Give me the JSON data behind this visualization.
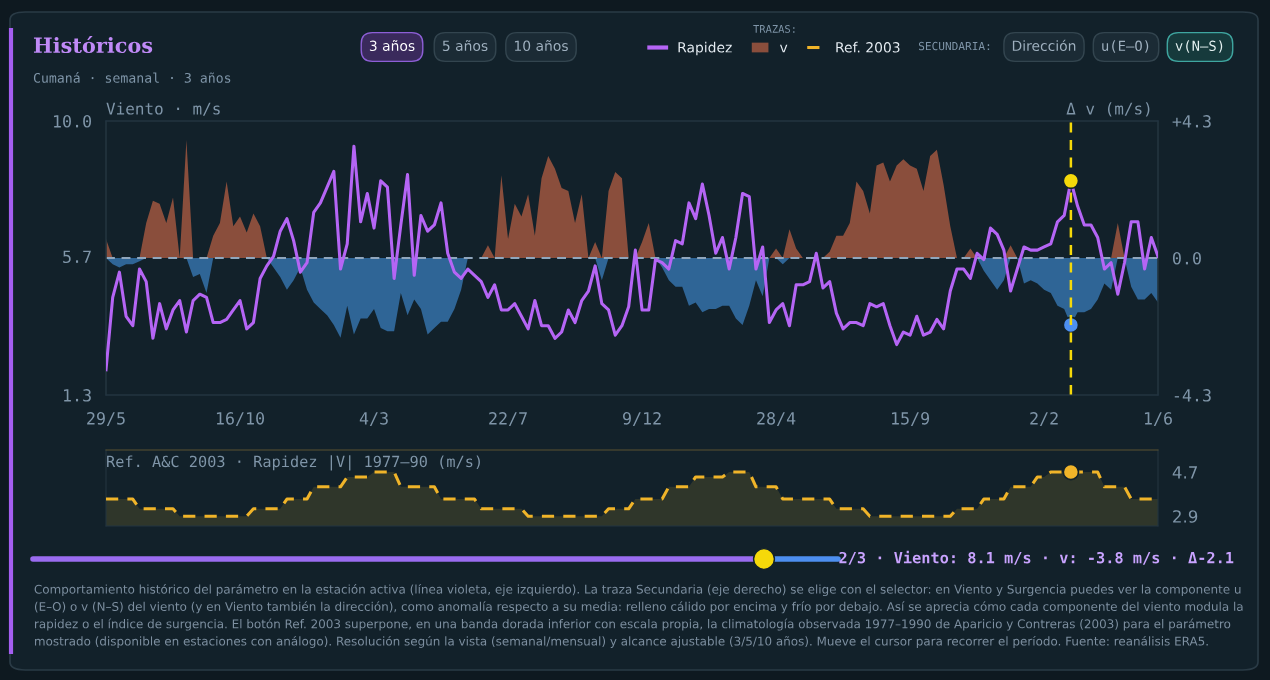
{
  "chart_data": [
    {
      "type": "line",
      "title": "Históricos",
      "subtitle": "Cumaná · semanal · 3 años",
      "ylabel": "Viento · m/s",
      "y2label": "Δ v (m/s)",
      "categories": [
        "29/5",
        null,
        null,
        null,
        null,
        null,
        null,
        null,
        null,
        null,
        null,
        null,
        null,
        null,
        null,
        null,
        null,
        null,
        null,
        null,
        "16/10",
        null,
        null,
        null,
        null,
        null,
        null,
        null,
        null,
        null,
        null,
        null,
        null,
        null,
        null,
        null,
        null,
        null,
        null,
        null,
        "4/3",
        null,
        null,
        null,
        null,
        null,
        null,
        null,
        null,
        null,
        null,
        null,
        null,
        null,
        null,
        null,
        null,
        null,
        null,
        null,
        "22/7",
        null,
        null,
        null,
        null,
        null,
        null,
        null,
        null,
        null,
        null,
        null,
        null,
        null,
        null,
        null,
        null,
        null,
        null,
        null,
        "9/12",
        null,
        null,
        null,
        null,
        null,
        null,
        null,
        null,
        null,
        null,
        null,
        null,
        null,
        null,
        null,
        null,
        null,
        null,
        null,
        "28/4",
        null,
        null,
        null,
        null,
        null,
        null,
        null,
        null,
        null,
        null,
        null,
        null,
        null,
        null,
        null,
        null,
        null,
        null,
        null,
        "15/9",
        null,
        null,
        null,
        null,
        null,
        null,
        null,
        null,
        null,
        null,
        null,
        null,
        null,
        null,
        null,
        null,
        null,
        null,
        null,
        "2/2",
        null,
        null,
        null,
        null,
        null,
        null,
        null,
        null,
        null,
        null,
        null,
        null,
        null,
        null,
        null,
        null,
        "1/6"
      ],
      "ylim": [
        1.3,
        10.0
      ],
      "yticks": [
        1.3,
        5.7,
        {
          "value": 10.0,
          "label": "10.0"
        }
      ],
      "y2lim": [
        -4.3,
        4.3
      ],
      "y2ticks": [
        {
          "value": 4.3,
          "label": "+4.3"
        },
        {
          "value": 0,
          "label": "0.0"
        },
        {
          "value": -4.3,
          "label": "-4.3"
        }
      ],
      "legend": "top",
      "legend_title": "TRAZAS:",
      "ref_lines": [
        {
          "axis": "y2",
          "value": 0,
          "color": "#8fa6bd",
          "line_style": "dashed"
        }
      ],
      "series": [
        {
          "name": "Rapidez",
          "color": "#b565f5",
          "values": [
            2.1,
            4.4,
            5.2,
            3.8,
            3.5,
            5.3,
            4.9,
            3.1,
            4.2,
            3.4,
            4.0,
            4.3,
            3.3,
            4.3,
            4.5,
            4.4,
            3.6,
            3.6,
            3.7,
            4.0,
            4.3,
            3.4,
            3.6,
            5.0,
            5.4,
            5.7,
            6.5,
            6.9,
            6.2,
            5.2,
            5.5,
            7.1,
            7.4,
            7.9,
            8.4,
            5.3,
            6.1,
            9.2,
            6.8,
            7.7,
            6.6,
            8.1,
            7.9,
            5.0,
            6.7,
            8.3,
            5.1,
            7.0,
            6.5,
            6.7,
            7.4,
            5.8,
            5.2,
            5.0,
            5.3,
            5.1,
            4.9,
            4.4,
            4.8,
            4.0,
            4.0,
            4.2,
            3.8,
            3.4,
            4.3,
            3.5,
            3.5,
            3.1,
            3.3,
            4.0,
            3.6,
            4.3,
            4.6,
            5.4,
            4.2,
            4.0,
            3.2,
            3.5,
            4.1,
            5.9,
            4.0,
            4.0,
            5.6,
            5.5,
            5.3,
            6.2,
            6.1,
            7.4,
            6.9,
            8.0,
            7.0,
            5.8,
            6.3,
            5.3,
            6.3,
            7.7,
            7.6,
            5.3,
            6.0,
            3.6,
            4.0,
            4.2,
            3.5,
            4.8,
            4.8,
            4.9,
            5.8,
            4.7,
            4.9,
            3.9,
            3.4,
            3.6,
            3.6,
            3.5,
            4.2,
            4.1,
            4.2,
            3.5,
            2.9,
            3.3,
            3.2,
            3.8,
            3.2,
            3.3,
            3.7,
            3.4,
            4.6,
            5.3,
            5.3,
            5.0,
            5.8,
            5.6,
            6.6,
            6.4,
            5.9,
            4.6,
            5.3,
            6.0,
            5.9,
            5.9,
            6.0,
            6.1,
            6.8,
            7.0,
            8.1,
            7.3,
            6.7,
            6.7,
            6.3,
            5.3,
            5.5,
            4.5,
            5.5,
            6.8,
            6.8,
            5.3,
            6.3,
            5.7
          ]
        },
        {
          "name": "v",
          "type": "area",
          "axis": "y2",
          "color": "#8a4e3c",
          "values": [
            0.6,
            0,
            0,
            0,
            0,
            0,
            1.1,
            1.8,
            1.7,
            1.1,
            1.9,
            0,
            3.7,
            0,
            0,
            0,
            0.7,
            1.1,
            2.4,
            1.0,
            1.3,
            0.8,
            1.4,
            1.0,
            0,
            0,
            0,
            0,
            0,
            0,
            0,
            0,
            0,
            0,
            0,
            0,
            0,
            0,
            0,
            0,
            0,
            0,
            0,
            0,
            0,
            0,
            0,
            0,
            0,
            0,
            0,
            0,
            0,
            0,
            0,
            0,
            0,
            0.4,
            0,
            2.6,
            0.6,
            1.7,
            1.3,
            2.0,
            0.7,
            2.5,
            3.2,
            2.8,
            2.2,
            2.1,
            1.1,
            2.0,
            0,
            0.5,
            0,
            2.1,
            2.7,
            2.5,
            0,
            0,
            0.5,
            1.1,
            0,
            0,
            0,
            0,
            0,
            0,
            0,
            0,
            0,
            0,
            0,
            0,
            0,
            0,
            0,
            0,
            0,
            0,
            0.3,
            0,
            0.9,
            0.3,
            0,
            0,
            0,
            0,
            0.2,
            0.7,
            0.7,
            1.1,
            2.4,
            2.1,
            1.4,
            2.9,
            3.0,
            2.4,
            2.9,
            3.1,
            2.9,
            2.8,
            2.1,
            3.2,
            3.4,
            2.3,
            1.0,
            0,
            0,
            0.3,
            0,
            0,
            0,
            0,
            0,
            0.4,
            0,
            0,
            0,
            0,
            0,
            0,
            0,
            0,
            0,
            0,
            0,
            0,
            0,
            0,
            0,
            1.1,
            0,
            0,
            0,
            0,
            0,
            0
          ]
        },
        {
          "type": "area",
          "axis": "y2",
          "color": "#2f6596",
          "values": [
            0,
            -0.2,
            -0.3,
            -0.2,
            -0.2,
            -0.1,
            0,
            0,
            0,
            0,
            0,
            0,
            0,
            -0.6,
            -0.5,
            -1.1,
            0,
            0,
            0,
            0,
            0,
            0,
            0,
            0,
            0,
            -0.3,
            -0.6,
            -1.0,
            -0.7,
            -0.3,
            -1.0,
            -1.4,
            -1.6,
            -1.8,
            -2.1,
            -2.5,
            -1.5,
            -2.4,
            -1.9,
            -1.9,
            -1.6,
            -2.2,
            -2.3,
            -2.3,
            -1.1,
            -1.8,
            -1.3,
            -1.6,
            -2.4,
            -2.2,
            -2.0,
            -2.0,
            -1.6,
            -1.0,
            0,
            0,
            0,
            0,
            0,
            0,
            0,
            0,
            0,
            0,
            0,
            0,
            0,
            0,
            0,
            0,
            0,
            0,
            0,
            0,
            -0.7,
            0,
            0,
            0,
            0,
            0,
            0,
            0,
            0,
            -0.3,
            -0.7,
            -0.9,
            -0.9,
            -1.5,
            -1.4,
            -1.7,
            -1.6,
            -1.6,
            -1.5,
            -1.5,
            -1.9,
            -2.1,
            -1.5,
            -0.7,
            -1.2,
            0,
            0,
            -0.2,
            0,
            0,
            0,
            0,
            0,
            0,
            0,
            0,
            0,
            0,
            0,
            0,
            0,
            0,
            0,
            0,
            0,
            0,
            0,
            0,
            0,
            0,
            0,
            0,
            0,
            0,
            0,
            0,
            0,
            -0.4,
            -0.7,
            -1.0,
            -0.7,
            0,
            0,
            -0.8,
            -0.7,
            -0.8,
            -1.0,
            -1.1,
            -1.5,
            -1.6,
            -2.1,
            -1.7,
            -1.7,
            -1.6,
            -1.3,
            -0.8,
            -1.0,
            0,
            0,
            -0.9,
            -1.3,
            -1.3,
            -1.1,
            -1.4
          ]
        },
        {
          "type": "scatter",
          "color": "#f5d90a",
          "values": [
            null,
            null,
            null,
            null,
            null,
            null,
            null,
            null,
            null,
            null,
            null,
            null,
            null,
            null,
            null,
            null,
            null,
            null,
            null,
            null,
            null,
            null,
            null,
            null,
            null,
            null,
            null,
            null,
            null,
            null,
            null,
            null,
            null,
            null,
            null,
            null,
            null,
            null,
            null,
            null,
            null,
            null,
            null,
            null,
            null,
            null,
            null,
            null,
            null,
            null,
            null,
            null,
            null,
            null,
            null,
            null,
            null,
            null,
            null,
            null,
            null,
            null,
            null,
            null,
            null,
            null,
            null,
            null,
            null,
            null,
            null,
            null,
            null,
            null,
            null,
            null,
            null,
            null,
            null,
            null,
            null,
            null,
            null,
            null,
            null,
            null,
            null,
            null,
            null,
            null,
            null,
            null,
            null,
            null,
            null,
            null,
            null,
            null,
            null,
            null,
            null,
            null,
            null,
            null,
            null,
            null,
            null,
            null,
            null,
            null,
            null,
            null,
            null,
            null,
            null,
            null,
            null,
            null,
            null,
            null,
            null,
            null,
            null,
            null,
            null,
            null,
            null,
            null,
            null,
            null,
            null,
            null,
            null,
            null,
            null,
            null,
            null,
            null,
            null,
            null,
            null,
            null,
            null,
            null,
            8.1,
            null,
            null,
            null,
            null,
            null,
            null,
            null,
            null,
            null,
            null,
            null,
            null,
            null
          ]
        },
        {
          "type": "scatter",
          "axis": "y2",
          "color": "#4d8ff0",
          "values": [
            null,
            null,
            null,
            null,
            null,
            null,
            null,
            null,
            null,
            null,
            null,
            null,
            null,
            null,
            null,
            null,
            null,
            null,
            null,
            null,
            null,
            null,
            null,
            null,
            null,
            null,
            null,
            null,
            null,
            null,
            null,
            null,
            null,
            null,
            null,
            null,
            null,
            null,
            null,
            null,
            null,
            null,
            null,
            null,
            null,
            null,
            null,
            null,
            null,
            null,
            null,
            null,
            null,
            null,
            null,
            null,
            null,
            null,
            null,
            null,
            null,
            null,
            null,
            null,
            null,
            null,
            null,
            null,
            null,
            null,
            null,
            null,
            null,
            null,
            null,
            null,
            null,
            null,
            null,
            null,
            null,
            null,
            null,
            null,
            null,
            null,
            null,
            null,
            null,
            null,
            null,
            null,
            null,
            null,
            null,
            null,
            null,
            null,
            null,
            null,
            null,
            null,
            null,
            null,
            null,
            null,
            null,
            null,
            null,
            null,
            null,
            null,
            null,
            null,
            null,
            null,
            null,
            null,
            null,
            null,
            null,
            null,
            null,
            null,
            null,
            null,
            null,
            null,
            null,
            null,
            null,
            null,
            null,
            null,
            null,
            null,
            null,
            null,
            null,
            null,
            null,
            null,
            null,
            null,
            -2.1,
            null,
            null,
            null,
            null,
            null,
            null,
            null,
            null,
            null,
            null,
            null,
            null,
            null
          ]
        }
      ],
      "annotations": [
        "3 años",
        "5 años",
        "10 años",
        "SECUNDARIA:",
        "Dirección",
        "u(E–O)",
        "v(N–S)",
        "2/3 · Viento: 8.1 m/s · v: -3.8 m/s · Δ-2.1",
        "Comportamiento histórico del parámetro en la estación activa (línea violeta, eje izquierdo). La traza Secundaria (eje derecho) se elige con el selector: en Viento y Surgencia puedes ver la componente u (E–O) o v (N–S) del viento (y en Viento también la dirección), como anomalía respecto a su media: relleno cálido por encima y frío por debajo. Así se aprecia cómo cada componente del viento modula la rapidez o el índice de surgencia. El botón Ref. 2003 superpone, en una banda dorada inferior con escala propia, la climatología observada 1977–1990 de Aparicio y Contreras (2003) para el parámetro mostrado (disponible en estaciones con análogo). Resolución según la vista (semanal/mensual) y alcance ajustable (3/5/10 años). Mueve el cursor para recorrer el período. Fuente: reanálisis ERA5."
      ]
    },
    {
      "type": "area",
      "title": "Ref. A&C 2003 · Rapidez |V| 1977–90 (m/s)",
      "categories": [
        null,
        null,
        null,
        null,
        null,
        null,
        null,
        null,
        null,
        null,
        null,
        null,
        null,
        null,
        null,
        null,
        null,
        null,
        null,
        null,
        null,
        null,
        null,
        null,
        null,
        null,
        null,
        null,
        null,
        null,
        null,
        null,
        null,
        null,
        null,
        null,
        null,
        null,
        null,
        null,
        null,
        null,
        null,
        null,
        null,
        null,
        null,
        null,
        null,
        null,
        null,
        null,
        null,
        null,
        null,
        null,
        null,
        null,
        null,
        null,
        null,
        null,
        null,
        null,
        null,
        null,
        null,
        null,
        null,
        null,
        null,
        null,
        null,
        null,
        null,
        null,
        null,
        null,
        null,
        null,
        null,
        null,
        null,
        null,
        null,
        null,
        null,
        null,
        null,
        null,
        null,
        null,
        null,
        null,
        null,
        null,
        null,
        null,
        null,
        null,
        null,
        null,
        null,
        null,
        null,
        null,
        null,
        null,
        null,
        null,
        null,
        null,
        null,
        null,
        null,
        null,
        null,
        null,
        null,
        null,
        null,
        null,
        null,
        null,
        null,
        null,
        null,
        null,
        null,
        null,
        null,
        null,
        null,
        null,
        null,
        null,
        null,
        null,
        null,
        null,
        null,
        null,
        null,
        null,
        null,
        null,
        null,
        null,
        null,
        null,
        null,
        null,
        null,
        null,
        null,
        null,
        null,
        null
      ],
      "ylim": [
        2.5,
        5.6
      ],
      "yticks": [
        2.9,
        4.7
      ],
      "tick_labels": "y",
      "legend": "top",
      "line_style": "dashed",
      "series": [
        {
          "name": "Ref. 2003",
          "color": "#f0b429",
          "values": [
            3.6,
            3.6,
            3.6,
            3.6,
            3.6,
            3.2,
            3.2,
            3.2,
            3.2,
            3.2,
            3.2,
            2.9,
            2.9,
            2.9,
            2.9,
            2.9,
            2.9,
            2.9,
            2.9,
            2.9,
            2.9,
            2.9,
            3.2,
            3.2,
            3.2,
            3.2,
            3.2,
            3.6,
            3.6,
            3.6,
            3.6,
            4.1,
            4.1,
            4.1,
            4.1,
            4.1,
            4.5,
            4.5,
            4.5,
            4.5,
            4.7,
            4.7,
            4.7,
            4.7,
            4.1,
            4.1,
            4.1,
            4.1,
            4.1,
            4.1,
            3.6,
            3.6,
            3.6,
            3.6,
            3.6,
            3.6,
            3.2,
            3.2,
            3.2,
            3.2,
            3.2,
            3.2,
            3.2,
            2.9,
            2.9,
            2.9,
            2.9,
            2.9,
            2.9,
            2.9,
            2.9,
            2.9,
            2.9,
            2.9,
            2.9,
            3.2,
            3.2,
            3.2,
            3.2,
            3.6,
            3.6,
            3.6,
            3.6,
            3.6,
            4.1,
            4.1,
            4.1,
            4.1,
            4.5,
            4.5,
            4.5,
            4.5,
            4.5,
            4.7,
            4.7,
            4.7,
            4.7,
            4.1,
            4.1,
            4.1,
            4.1,
            3.6,
            3.6,
            3.6,
            3.6,
            3.6,
            3.6,
            3.6,
            3.6,
            3.2,
            3.2,
            3.2,
            3.2,
            3.2,
            2.9,
            2.9,
            2.9,
            2.9,
            2.9,
            2.9,
            2.9,
            2.9,
            2.9,
            2.9,
            2.9,
            2.9,
            2.9,
            3.2,
            3.2,
            3.2,
            3.2,
            3.6,
            3.6,
            3.6,
            3.6,
            4.1,
            4.1,
            4.1,
            4.1,
            4.5,
            4.5,
            4.7,
            4.7,
            4.7,
            4.7,
            4.7,
            4.7,
            4.7,
            4.7,
            4.1,
            4.1,
            4.1,
            4.1,
            3.6,
            3.6,
            3.6,
            3.6,
            3.6
          ]
        },
        {
          "type": "scatter",
          "color": "#f0b429",
          "values": [
            null,
            null,
            null,
            null,
            null,
            null,
            null,
            null,
            null,
            null,
            null,
            null,
            null,
            null,
            null,
            null,
            null,
            null,
            null,
            null,
            null,
            null,
            null,
            null,
            null,
            null,
            null,
            null,
            null,
            null,
            null,
            null,
            null,
            null,
            null,
            null,
            null,
            null,
            null,
            null,
            null,
            null,
            null,
            null,
            null,
            null,
            null,
            null,
            null,
            null,
            null,
            null,
            null,
            null,
            null,
            null,
            null,
            null,
            null,
            null,
            null,
            null,
            null,
            null,
            null,
            null,
            null,
            null,
            null,
            null,
            null,
            null,
            null,
            null,
            null,
            null,
            null,
            null,
            null,
            null,
            null,
            null,
            null,
            null,
            null,
            null,
            null,
            null,
            null,
            null,
            null,
            null,
            null,
            null,
            null,
            null,
            null,
            null,
            null,
            null,
            null,
            null,
            null,
            null,
            null,
            null,
            null,
            null,
            null,
            null,
            null,
            null,
            null,
            null,
            null,
            null,
            null,
            null,
            null,
            null,
            null,
            null,
            null,
            null,
            null,
            null,
            null,
            null,
            null,
            null,
            null,
            null,
            null,
            null,
            null,
            null,
            null,
            null,
            null,
            null,
            null,
            null,
            null,
            null,
            4.7,
            null,
            null,
            null,
            null,
            null,
            null,
            null,
            null,
            null,
            null,
            null,
            null,
            null
          ]
        }
      ]
    }
  ]
}
